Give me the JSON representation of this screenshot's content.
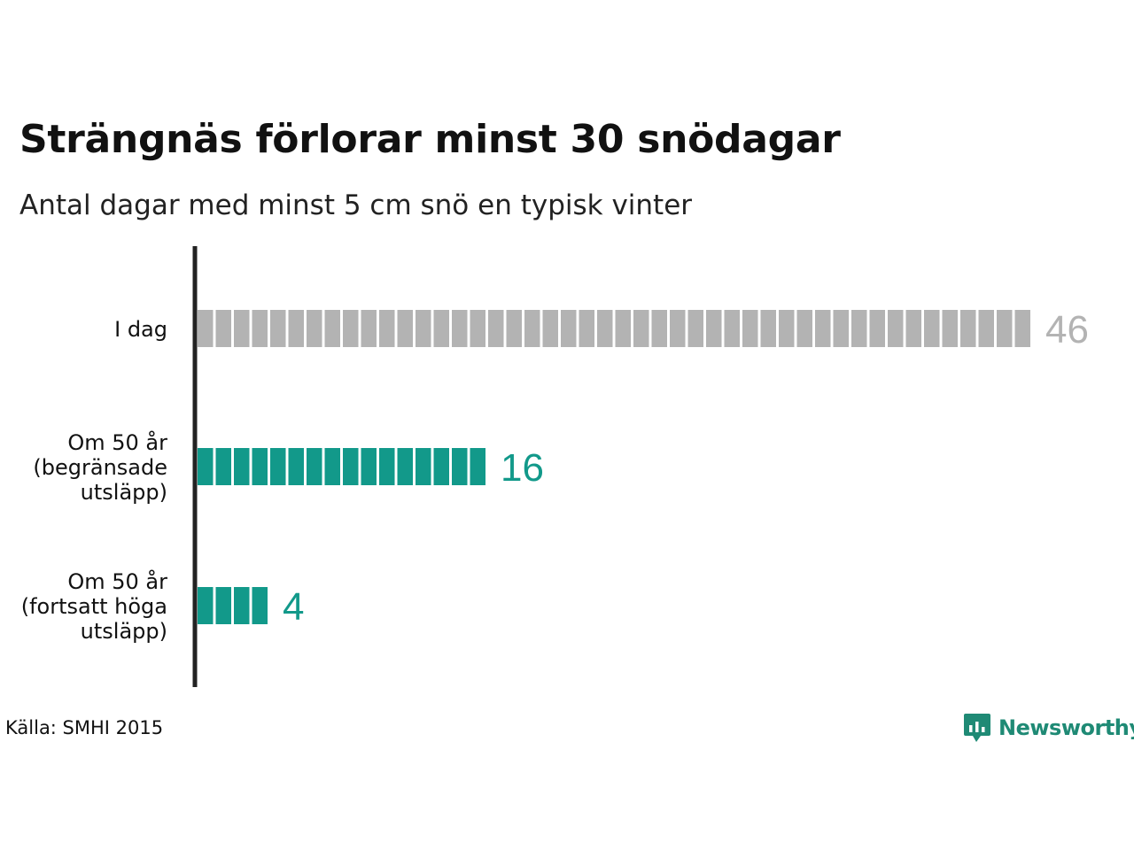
{
  "chart_data": {
    "type": "bar",
    "orientation": "horizontal",
    "title": "Strängnäs förlorar minst 30 snödagar",
    "subtitle": "Antal dagar med minst 5 cm snö en typisk vinter",
    "categories": [
      [
        "I dag"
      ],
      [
        "Om 50 år",
        "(begränsade",
        "utsläpp)"
      ],
      [
        "Om 50 år",
        "(fortsatt höga",
        "utsläpp)"
      ]
    ],
    "values": [
      46,
      16,
      4
    ],
    "value_labels": [
      "46",
      "16",
      "4"
    ],
    "colors": [
      "#b3b3b3",
      "#12998a",
      "#12998a"
    ],
    "bar_style": "segmented, one block per day",
    "source": "Källa: SMHI 2015"
  },
  "brand": {
    "name": "Newsworthy",
    "color": "#1f8a75"
  }
}
